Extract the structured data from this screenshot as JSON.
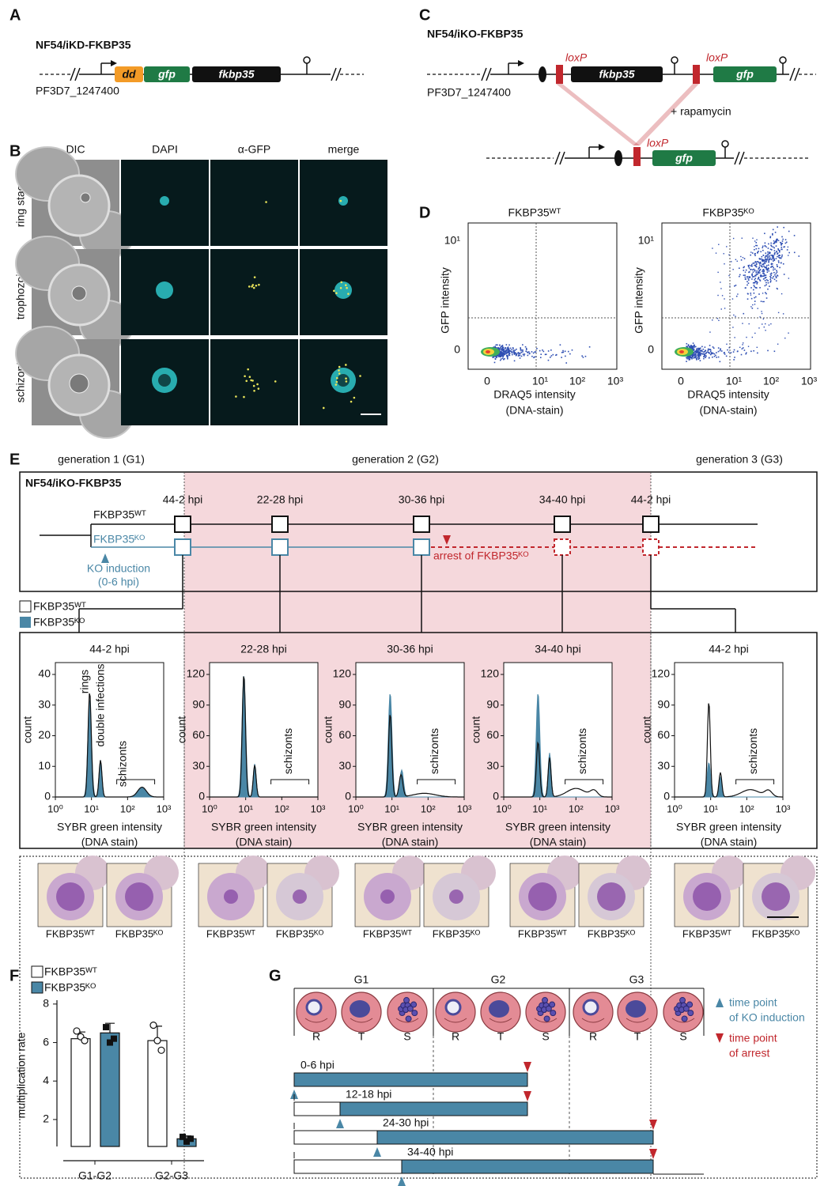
{
  "panel_a": {
    "letter": "A",
    "strain": "NF54/iKD-FKBP35",
    "gene_id": "PF3D7_1247400",
    "elements": [
      "dd",
      "gfp",
      "fkbp35"
    ]
  },
  "panel_b": {
    "letter": "B",
    "columns": [
      "DIC",
      "DAPI",
      "α-GFP",
      "merge"
    ],
    "rows": [
      "ring stage",
      "trophozoite",
      "schizont"
    ]
  },
  "panel_c": {
    "letter": "C",
    "strain": "NF54/iKO-FKBP35",
    "gene_id": "PF3D7_1247400",
    "lox": "loxP",
    "genes": [
      "fkbp35",
      "gfp"
    ],
    "treatment": "+ rapamycin"
  },
  "panel_d": {
    "letter": "D",
    "titles": [
      "FKBP35ᵂᵀ",
      "FKBP35ᴷᴼ"
    ],
    "y_label": "GFP intensity",
    "y_ticks": [
      "10¹",
      "0"
    ],
    "x_ticks": [
      "0",
      "10¹",
      "10²",
      "10³"
    ],
    "x_label": "DRAQ5 intensity",
    "x_sublabel": "(DNA-stain)"
  },
  "panel_e": {
    "letter": "E",
    "generations": [
      "generation 1 (G1)",
      "generation 2 (G2)",
      "generation 3 (G3)"
    ],
    "strain": "NF54/iKO-FKBP35",
    "timepoints": [
      "44-2 hpi",
      "22-28 hpi",
      "30-36 hpi",
      "34-40 hpi",
      "44-2 hpi"
    ],
    "wt": "FKBP35ᵂᵀ",
    "ko": "FKBP35ᴷᴼ",
    "induction": [
      "KO induction",
      "(0-6 hpi)"
    ],
    "arrest": "arrest of FKBP35ᴷᴼ",
    "legend": [
      "FKBP35ᵂᵀ",
      "FKBP35ᴷᴼ"
    ],
    "histograms": [
      {
        "title": "44-2 hpi",
        "yticks": [
          0,
          10,
          20,
          30,
          40
        ],
        "annotations": [
          "rings",
          "double infections",
          "schizonts"
        ]
      },
      {
        "title": "22-28 hpi",
        "yticks": [
          0,
          30,
          60,
          90,
          120
        ],
        "annotations": [
          "schizonts"
        ]
      },
      {
        "title": "30-36 hpi",
        "yticks": [
          0,
          30,
          60,
          90,
          120
        ],
        "annotations": [
          "schizonts"
        ]
      },
      {
        "title": "34-40 hpi",
        "yticks": [
          0,
          30,
          60,
          90,
          120
        ],
        "annotations": [
          "schizonts"
        ]
      },
      {
        "title": "44-2 hpi",
        "yticks": [
          0,
          30,
          60,
          90,
          120
        ],
        "annotations": [
          "schizonts"
        ]
      }
    ],
    "y_label": "count",
    "x_ticks": [
      "10⁰",
      "10¹",
      "10²",
      "10³"
    ],
    "x_label": "SYBR green intensity",
    "x_sublabel": "(DNA stain)",
    "micrograph_labels": [
      "FKBP35ᵂᵀ",
      "FKBP35ᴷᴼ"
    ]
  },
  "panel_f": {
    "letter": "F",
    "type": "bar",
    "y_label": "multiplication rate",
    "categories": [
      "G1-G2",
      "G2-G3"
    ],
    "ylim": [
      0.6,
      8.2
    ],
    "yticks": [
      2,
      4,
      6,
      8
    ],
    "series": [
      {
        "name": "FKBP35ᵂᵀ",
        "color": "#ffffff",
        "values": [
          6.2,
          6.1
        ],
        "errors": [
          0.35,
          0.75
        ],
        "points": [
          [
            6.6,
            6.3,
            6.1
          ],
          [
            6.9,
            6.1,
            5.6
          ]
        ]
      },
      {
        "name": "FKBP35ᴷᴼ",
        "color": "#4a87a6",
        "values": [
          6.5,
          1.0
        ],
        "errors": [
          0.5,
          0.15
        ],
        "points": [
          [
            6.8,
            6.0,
            6.2
          ],
          [
            1.1,
            0.85,
            1.0
          ]
        ]
      }
    ]
  },
  "panel_g": {
    "letter": "G",
    "generations": [
      "G1",
      "G2",
      "G3"
    ],
    "stages": [
      "R",
      "T",
      "S"
    ],
    "windows": [
      "0-6 hpi",
      "12-18 hpi",
      "24-30 hpi",
      "34-40 hpi"
    ],
    "legend": [
      [
        "time point",
        "of KO induction"
      ],
      [
        "time point",
        "of arrest"
      ]
    ]
  }
}
